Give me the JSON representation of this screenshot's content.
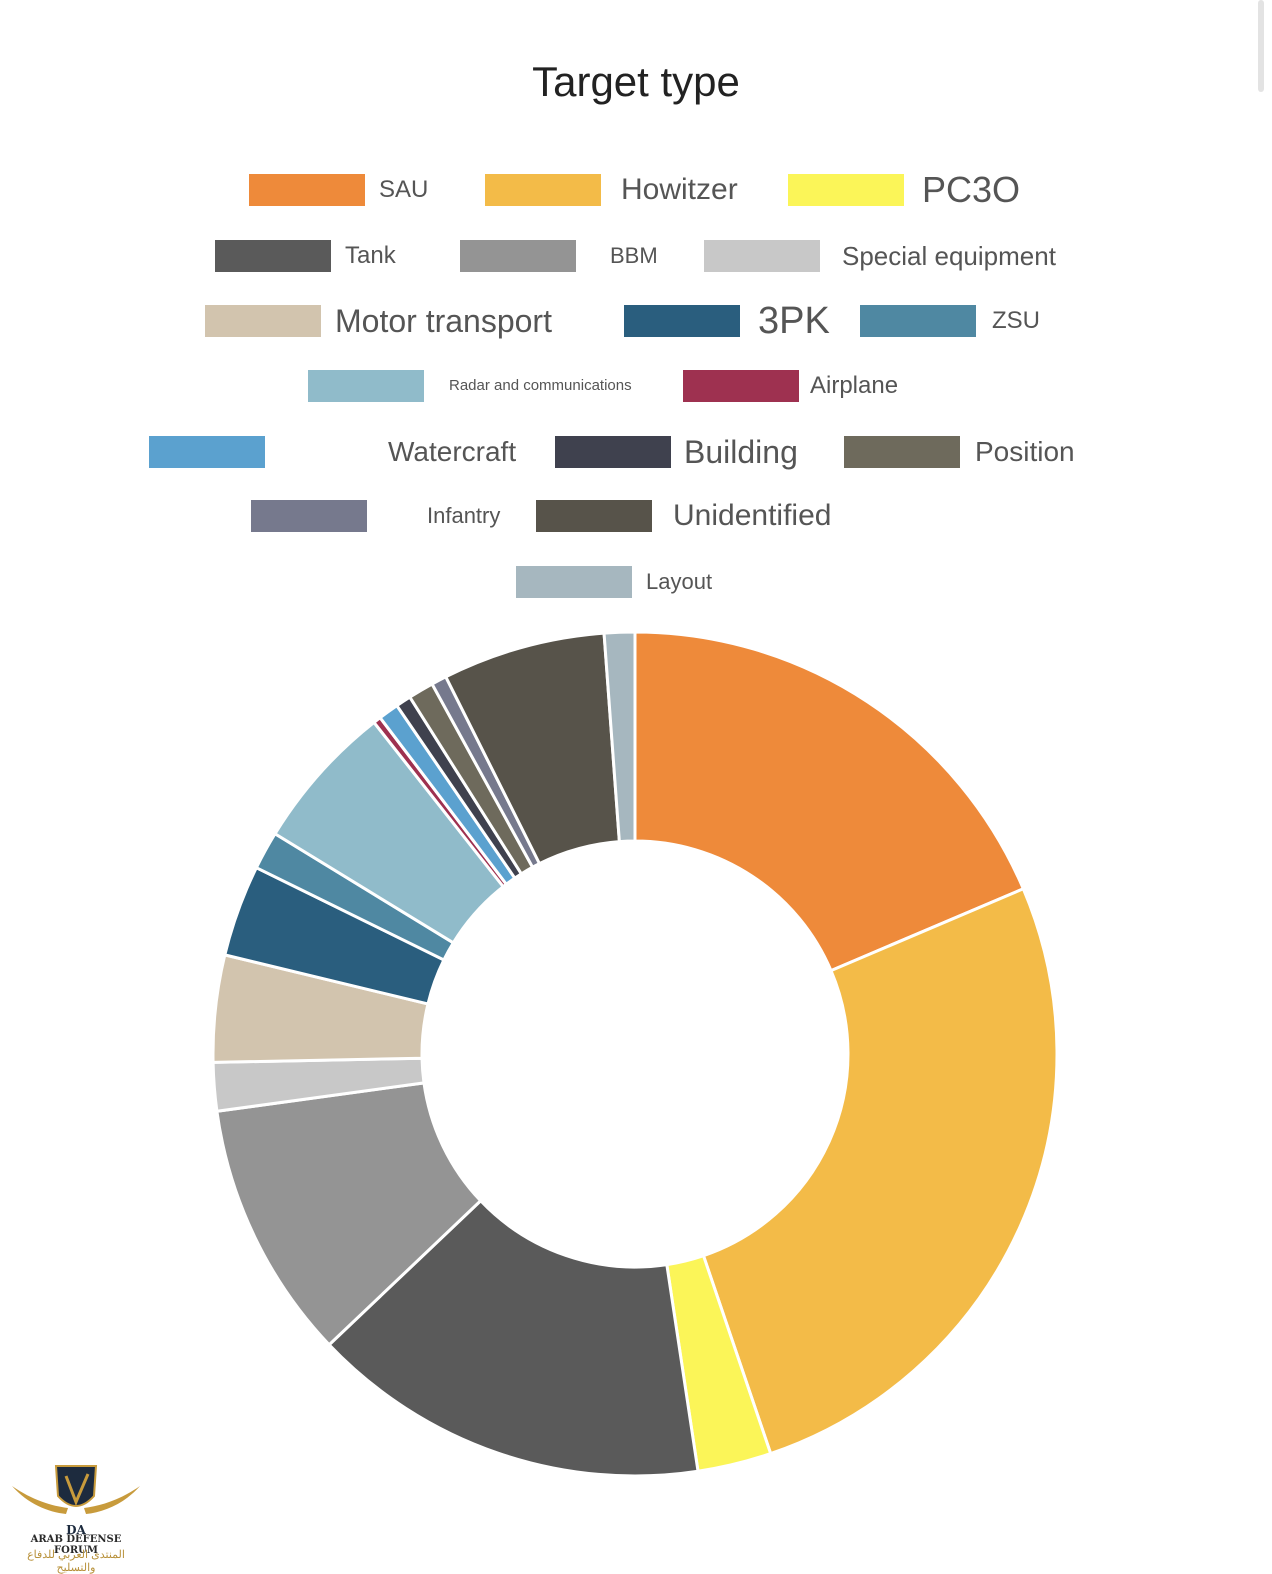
{
  "chart_data": {
    "type": "pie",
    "donut": true,
    "title": "Target type",
    "legend_position": "top",
    "categories": [
      "SAU",
      "Howitzer",
      "PC3O",
      "Tank",
      "BBM",
      "Special equipment",
      "Motor transport",
      "3PK",
      "ZSU",
      "Radar and communications",
      "Airplane",
      "Watercraft",
      "Building",
      "Position",
      "Infantry",
      "Unidentified",
      "Layout"
    ],
    "values": [
      19.1,
      26.9,
      2.9,
      15.7,
      10.2,
      1.9,
      4.2,
      3.6,
      1.5,
      5.8,
      0.3,
      0.8,
      0.6,
      1.0,
      0.6,
      6.4,
      1.2
    ],
    "colors": [
      "#ee8a3a",
      "#f3bb48",
      "#fbf558",
      "#5a5a5a",
      "#949494",
      "#c8c8c8",
      "#d2c4ae",
      "#2a5e7e",
      "#4f88a2",
      "#90bbca",
      "#9e3150",
      "#5ba1cf",
      "#3f414e",
      "#6e6a5c",
      "#76798d",
      "#57534a",
      "#a6b7bf"
    ]
  },
  "legend_rows": [
    [
      {
        "label": "SAU",
        "color": "#ee8a3a",
        "size": 24
      },
      {
        "label": "Howitzer",
        "color": "#f3bb48",
        "size": 30
      },
      {
        "label": "PC3O",
        "color": "#fbf558",
        "size": 36
      }
    ],
    [
      {
        "label": "Tank",
        "color": "#5a5a5a",
        "size": 24
      },
      {
        "label": "BBM",
        "color": "#949494",
        "size": 22
      },
      {
        "label": "Special equipment",
        "color": "#c8c8c8",
        "size": 26
      }
    ],
    [
      {
        "label": "Motor transport",
        "color": "#d2c4ae",
        "size": 32
      },
      {
        "label": "3PK",
        "color": "#2a5e7e",
        "size": 38
      },
      {
        "label": "ZSU",
        "color": "#4f88a2",
        "size": 24
      }
    ],
    [
      {
        "label": "Radar and communications",
        "color": "#90bbca",
        "size": 15
      },
      {
        "label": "Airplane",
        "color": "#9e3150",
        "size": 24
      }
    ],
    [
      {
        "label": "Watercraft",
        "color": "#5ba1cf",
        "size": 28
      },
      {
        "label": "Building",
        "color": "#3f414e",
        "size": 32
      },
      {
        "label": "Position",
        "color": "#6e6a5c",
        "size": 28
      }
    ],
    [
      {
        "label": "Infantry",
        "color": "#76798d",
        "size": 22
      },
      {
        "label": "Unidentified",
        "color": "#57534a",
        "size": 30
      }
    ],
    [
      {
        "label": "Layout",
        "color": "#a6b7bf",
        "size": 22
      }
    ]
  ],
  "watermark": {
    "monogram": "DA",
    "english": "ARAB DEFENSE FORUM",
    "arabic": "المنتدى العربي للدفاع والتسليح"
  }
}
